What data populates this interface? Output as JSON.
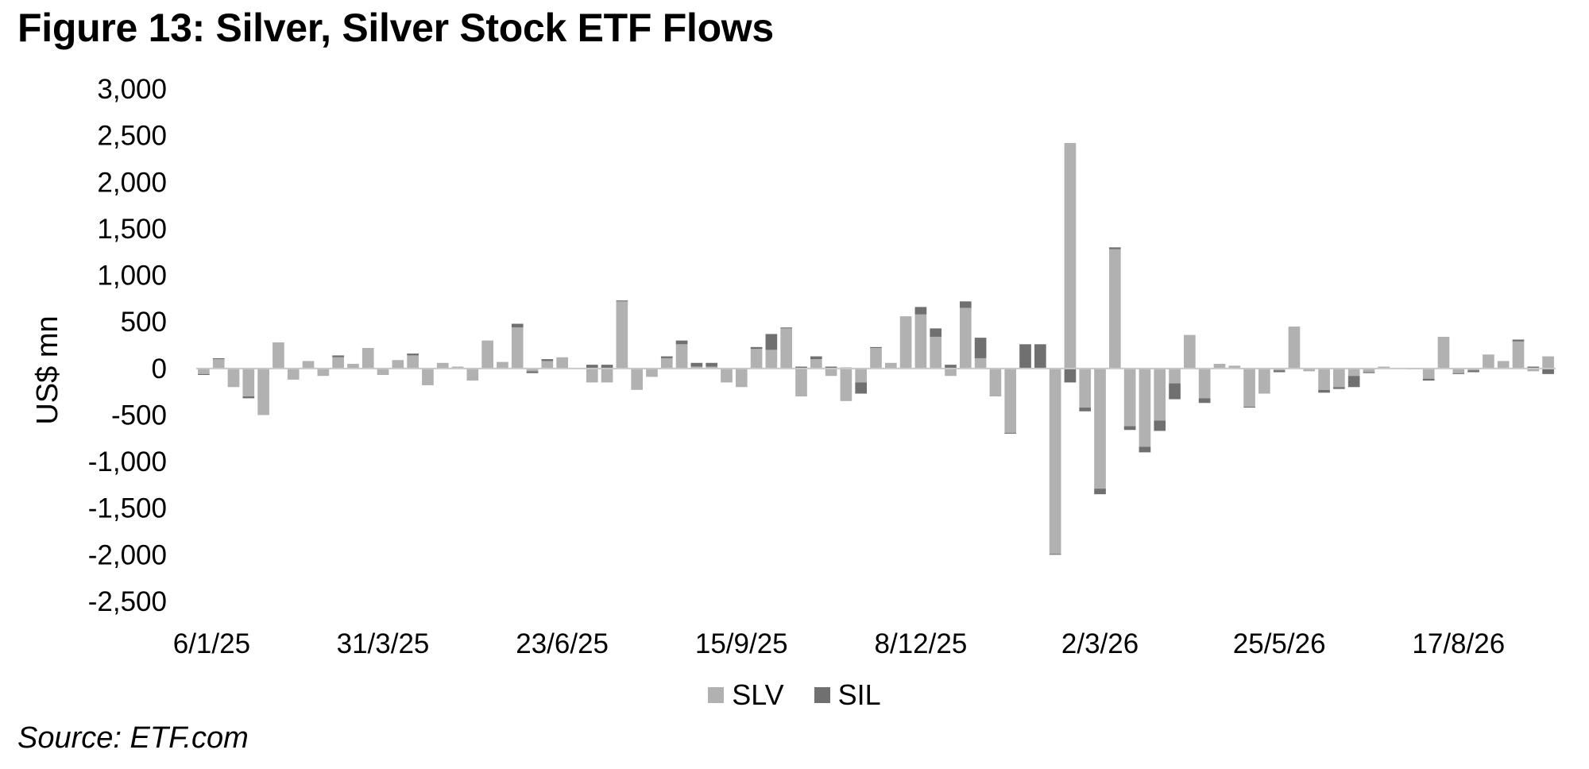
{
  "title": "Figure 13: Silver, Silver Stock ETF Flows",
  "source": "Source: ETF.com",
  "chart_data": {
    "type": "bar",
    "stacked": true,
    "ylabel": "US$ mn",
    "ylim": [
      -2500,
      3000
    ],
    "yticks": [
      3000,
      2500,
      2000,
      1500,
      1000,
      500,
      0,
      -500,
      -1000,
      -1500,
      -2000,
      -2500
    ],
    "ytick_labels": [
      "3,000",
      "2,500",
      "2,000",
      "1,500",
      "1,000",
      "500",
      "0",
      "-500",
      "-1,000",
      "-1,500",
      "-2,000",
      "-2,500"
    ],
    "xtick_labels": [
      {
        "label": "6/1/25",
        "index": 0
      },
      {
        "label": "31/3/25",
        "index": 12
      },
      {
        "label": "23/6/25",
        "index": 24
      },
      {
        "label": "15/9/25",
        "index": 36
      },
      {
        "label": "8/12/25",
        "index": 48
      },
      {
        "label": "2/3/26",
        "index": 60
      },
      {
        "label": "25/5/26",
        "index": 72
      },
      {
        "label": "17/8/26",
        "index": 84
      }
    ],
    "legend_position": "bottom",
    "grid": false,
    "series": [
      {
        "name": "SLV",
        "color": "#b1b1b1",
        "values": [
          -60,
          100,
          -200,
          -300,
          -500,
          280,
          -120,
          80,
          -80,
          120,
          50,
          220,
          -70,
          90,
          140,
          -180,
          60,
          20,
          -130,
          300,
          70,
          440,
          -30,
          80,
          120,
          0,
          -150,
          -150,
          720,
          -230,
          -90,
          110,
          260,
          20,
          20,
          -150,
          -200,
          210,
          200,
          430,
          -300,
          100,
          -80,
          -350,
          -150,
          220,
          60,
          560,
          580,
          340,
          -80,
          650,
          110,
          -300,
          -690,
          0,
          0,
          -1990,
          2420,
          -420,
          -1290,
          1280,
          -620,
          -840,
          -560,
          -160,
          360,
          -320,
          50,
          30,
          -410,
          -270,
          -20,
          450,
          -30,
          -230,
          -200,
          -80,
          -40,
          20,
          0,
          -10,
          -110,
          340,
          -50,
          -20,
          150,
          80,
          290,
          -30,
          130
        ],
        "__note": "values read off axis"
      },
      {
        "name": "SIL",
        "color": "#707070",
        "values": [
          -10,
          10,
          0,
          -20,
          0,
          0,
          0,
          0,
          0,
          20,
          0,
          0,
          0,
          0,
          20,
          0,
          0,
          0,
          0,
          0,
          0,
          40,
          -20,
          20,
          0,
          0,
          40,
          40,
          10,
          0,
          0,
          20,
          40,
          40,
          40,
          0,
          0,
          20,
          170,
          10,
          20,
          30,
          20,
          10,
          -120,
          10,
          0,
          0,
          80,
          90,
          40,
          70,
          220,
          0,
          -10,
          260,
          260,
          -10,
          -150,
          -40,
          -60,
          20,
          -40,
          -60,
          -110,
          -170,
          0,
          -50,
          0,
          0,
          -10,
          0,
          -20,
          0,
          0,
          -30,
          -20,
          -120,
          -10,
          0,
          0,
          0,
          -20,
          0,
          -10,
          -20,
          0,
          0,
          20,
          20,
          -60
        ]
      }
    ]
  }
}
